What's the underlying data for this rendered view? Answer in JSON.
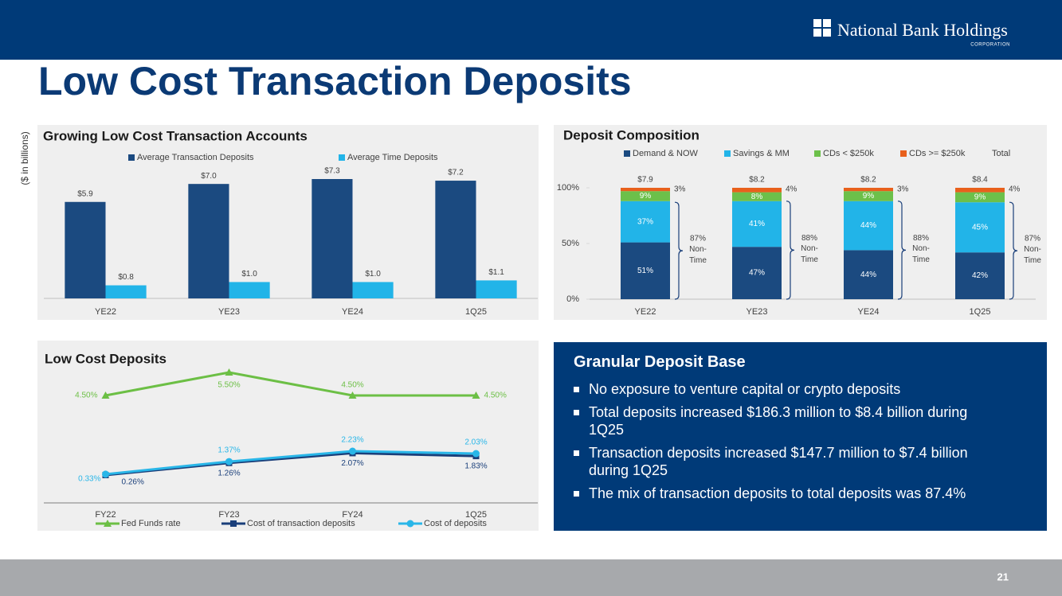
{
  "header": {
    "logo": "National Bank Holdings",
    "logo_sub": "CORPORATION"
  },
  "title": "Low Cost Transaction Deposits",
  "unit_label": "($ in billions)",
  "chart_data": [
    {
      "type": "bar",
      "title": "Growing Low Cost Transaction Accounts",
      "categories": [
        "YE22",
        "YE23",
        "YE24",
        "1Q25"
      ],
      "series": [
        {
          "name": "Average Transaction Deposits",
          "color": "#1b4a80",
          "values": [
            5.9,
            7.0,
            7.3,
            7.2
          ],
          "value_labels": [
            "$5.9",
            "$7.0",
            "$7.3",
            "$7.2"
          ]
        },
        {
          "name": "Average Time Deposits",
          "color": "#22b4e8",
          "values": [
            0.8,
            1.0,
            1.0,
            1.1
          ],
          "value_labels": [
            "$0.8",
            "$1.0",
            "$1.0",
            "$1.1"
          ]
        }
      ],
      "legend": "top"
    },
    {
      "type": "stacked_bar",
      "title": "Deposit Composition",
      "categories": [
        "YE22",
        "YE23",
        "YE24",
        "1Q25"
      ],
      "series": [
        {
          "name": "Demand & NOW",
          "color": "#1b4a80",
          "values": [
            51,
            47,
            44,
            42
          ],
          "value_labels": [
            "51%",
            "47%",
            "44%",
            "42%"
          ]
        },
        {
          "name": "Savings & MM",
          "color": "#22b4e8",
          "values": [
            37,
            41,
            44,
            45
          ],
          "value_labels": [
            "37%",
            "41%",
            "44%",
            "45%"
          ]
        },
        {
          "name": "CDs < $250k",
          "color": "#6cc04a",
          "values": [
            9,
            8,
            9,
            9
          ],
          "value_labels": [
            "9%",
            "8%",
            "9%",
            "9%"
          ]
        },
        {
          "name": "CDs >= $250k",
          "color": "#e8601c",
          "values": [
            3,
            4,
            3,
            4
          ],
          "value_labels": [
            "3%",
            "4%",
            "3%",
            "4%"
          ]
        }
      ],
      "total": {
        "name": "Total",
        "values": [
          7.9,
          8.2,
          8.2,
          8.4
        ],
        "value_labels": [
          "$7.9",
          "$8.2",
          "$8.2",
          "$8.4"
        ]
      },
      "annotation": {
        "label": "Non-Time",
        "values": [
          87,
          88,
          88,
          87
        ],
        "value_labels": [
          "87%",
          "88%",
          "88%",
          "87%"
        ]
      },
      "ylim": [
        0,
        100
      ],
      "yticks": [
        {
          "value": 0,
          "label": "0%"
        },
        {
          "value": 50,
          "label": "50%"
        },
        {
          "value": 100,
          "label": "100%"
        }
      ],
      "legend": "top"
    },
    {
      "type": "line",
      "title": "Low Cost Deposits",
      "categories": [
        "FY22",
        "FY23",
        "FY24",
        "1Q25"
      ],
      "series": [
        {
          "name": "Fed Funds rate",
          "color": "#6cbf45",
          "marker": "triangle",
          "axis": "y2",
          "values": [
            4.5,
            5.5,
            4.5,
            4.5
          ],
          "value_labels": [
            "4.50%",
            "5.50%",
            "4.50%",
            "4.50%"
          ]
        },
        {
          "name": "Cost of transaction deposits",
          "color": "#1a3f7a",
          "marker": "square",
          "values": [
            0.26,
            1.26,
            2.07,
            1.83
          ],
          "value_labels": [
            "0.26%",
            "1.26%",
            "2.07%",
            "1.83%"
          ]
        },
        {
          "name": "Cost of deposits",
          "color": "#29b6e8",
          "marker": "circle",
          "values": [
            0.33,
            1.37,
            2.23,
            2.03
          ],
          "value_labels": [
            "0.33%",
            "1.37%",
            "2.23%",
            "2.03%"
          ]
        }
      ],
      "legend": "bottom"
    }
  ],
  "panel": {
    "title": "Granular Deposit Base",
    "bullets": [
      "No exposure to venture capital or crypto deposits",
      "Total deposits increased $186.3 million to $8.4 billion during 1Q25",
      "Transaction deposits increased $147.7 million to $7.4 billion during 1Q25",
      "The mix of transaction deposits to total deposits was 87.4%"
    ]
  },
  "footer": {
    "page": "21"
  }
}
